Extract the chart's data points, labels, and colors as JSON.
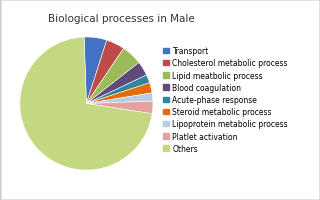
{
  "title": "Biological processes in Male",
  "labels": [
    "Transport",
    "Cholesterol metabolic process",
    "Lipid meatbolic process",
    "Blood coagulation",
    "Acute-phase response",
    "Steroid metabolic process",
    "Lipoprotein metabolic process",
    "Platlet activation",
    "Others"
  ],
  "sizes": [
    5.5,
    4.5,
    5.0,
    3.5,
    2.0,
    2.5,
    2.0,
    3.0,
    72.0
  ],
  "colors": [
    "#4472C4",
    "#BE4B48",
    "#9BBB59",
    "#604A7B",
    "#31849B",
    "#E36C09",
    "#B8CCE4",
    "#E6A0A0",
    "#C4D882"
  ],
  "title_fontsize": 7.5,
  "legend_fontsize": 5.5,
  "background_color": "#FFFFFF",
  "border_color": "#CCCCCC"
}
